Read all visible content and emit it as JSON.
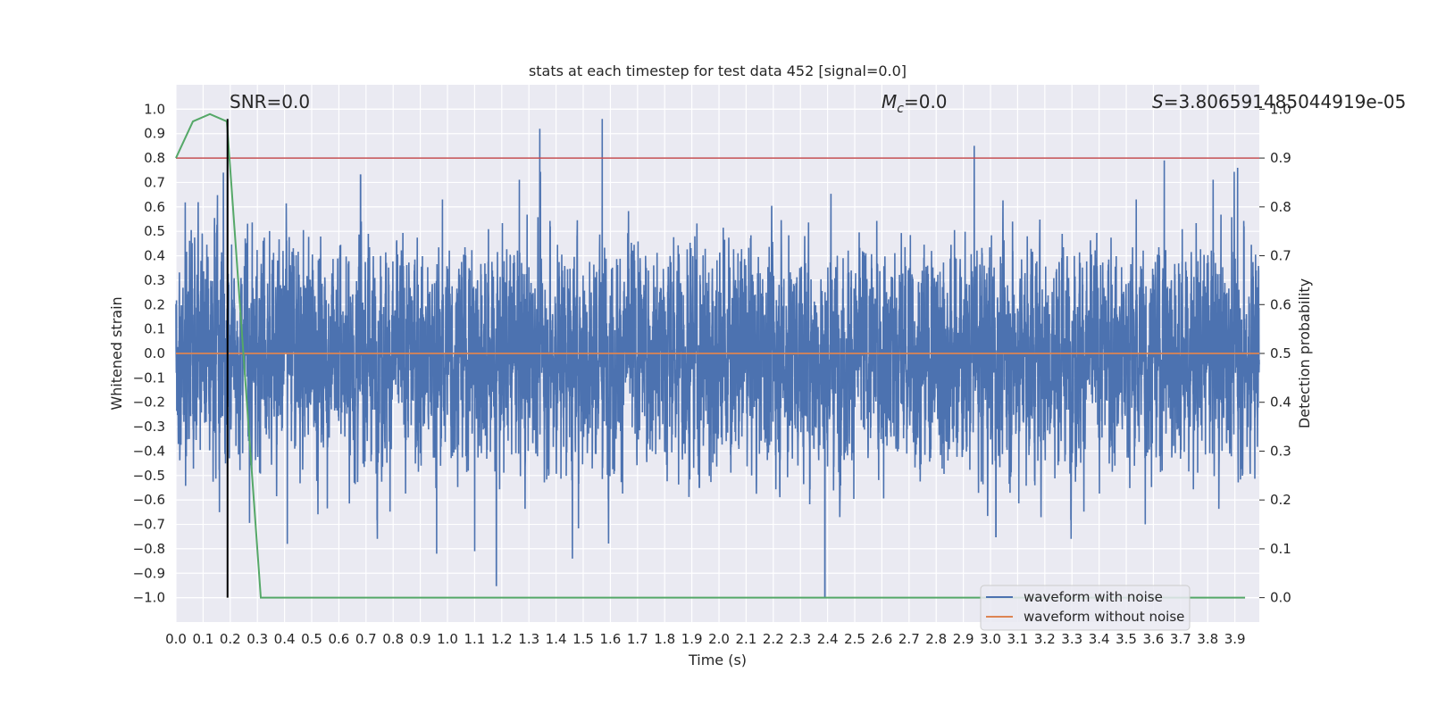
{
  "chart_data": {
    "type": "line",
    "title": "stats at each timestep for test data 452 [signal=0.0]",
    "xlabel": "Time (s)",
    "ylabel": "Whitened strain",
    "ylabel_right": "Detection probability",
    "xlim": [
      0.0,
      3.99
    ],
    "ylim": [
      -1.1,
      1.1
    ],
    "ylim_right": [
      -0.05,
      1.05
    ],
    "x_ticks": [
      "0.0",
      "0.1",
      "0.2",
      "0.3",
      "0.4",
      "0.5",
      "0.6",
      "0.7",
      "0.8",
      "0.9",
      "1.0",
      "1.1",
      "1.2",
      "1.3",
      "1.4",
      "1.5",
      "1.6",
      "1.7",
      "1.8",
      "1.9",
      "2.0",
      "2.1",
      "2.2",
      "2.3",
      "2.4",
      "2.5",
      "2.6",
      "2.7",
      "2.8",
      "2.9",
      "3.0",
      "3.1",
      "3.2",
      "3.3",
      "3.4",
      "3.5",
      "3.6",
      "3.7",
      "3.8",
      "3.9"
    ],
    "y_ticks": [
      "1.0",
      "0.9",
      "0.8",
      "0.7",
      "0.6",
      "0.5",
      "0.4",
      "0.3",
      "0.2",
      "0.1",
      "0.0",
      "−0.1",
      "−0.2",
      "−0.3",
      "−0.4",
      "−0.5",
      "−0.6",
      "−0.7",
      "−0.8",
      "−0.9",
      "−1.0"
    ],
    "y_right_ticks": [
      "1.0",
      "0.9",
      "0.8",
      "0.7",
      "0.6",
      "0.5",
      "0.4",
      "0.3",
      "0.2",
      "0.1",
      "0.0"
    ],
    "grid": true,
    "background": "#eaeaf2",
    "legend_placement": "lower-right",
    "annotations": {
      "snr": "SNR=0.0",
      "mc_symbol": "M",
      "mc_sub": "c",
      "mc_value": "=0.0",
      "s_symbol": "S",
      "s_value": "=3.806591485044919e-05"
    },
    "series": [
      {
        "name": "waveform with noise",
        "color": "#4c72b0",
        "axis": "left",
        "sample_rate": 2048,
        "noise_envelope": 0.33,
        "peaks": [
          {
            "x": 0.19,
            "y": 0.93
          },
          {
            "x": 0.41,
            "y": 0.72
          },
          {
            "x": 0.68,
            "y": 0.73
          },
          {
            "x": 1.34,
            "y": 0.92
          },
          {
            "x": 1.46,
            "y": 0.84
          },
          {
            "x": 1.57,
            "y": 0.96
          },
          {
            "x": 2.94,
            "y": 0.85
          },
          {
            "x": 3.64,
            "y": 0.79
          },
          {
            "x": 3.91,
            "y": 0.76
          },
          {
            "x": 2.39,
            "y": -1.0
          },
          {
            "x": 1.18,
            "y": -0.95
          },
          {
            "x": 1.46,
            "y": -0.84
          },
          {
            "x": 0.96,
            "y": -0.82
          },
          {
            "x": 1.1,
            "y": -0.81
          },
          {
            "x": 0.41,
            "y": -0.78
          },
          {
            "x": 3.02,
            "y": -0.75
          },
          {
            "x": 0.16,
            "y": -0.65
          },
          {
            "x": 3.57,
            "y": -0.7
          }
        ]
      },
      {
        "name": "waveform without noise",
        "color": "#dd8452",
        "axis": "left",
        "x": [
          0.0,
          3.99
        ],
        "y": [
          0.0,
          0.0
        ]
      },
      {
        "color": "#55a868",
        "axis": "right",
        "x": [
          0.0,
          0.0625,
          0.125,
          0.1875,
          0.3125,
          3.9375
        ],
        "y": [
          0.9,
          0.975,
          0.99,
          0.975,
          0.0,
          0.0
        ]
      }
    ],
    "threshold": {
      "color": "#c44e52",
      "axis": "right",
      "value": 0.9
    },
    "marker_line": {
      "color": "#000000",
      "x": 0.19,
      "y_from": -1.0,
      "y_to": 0.96
    }
  }
}
